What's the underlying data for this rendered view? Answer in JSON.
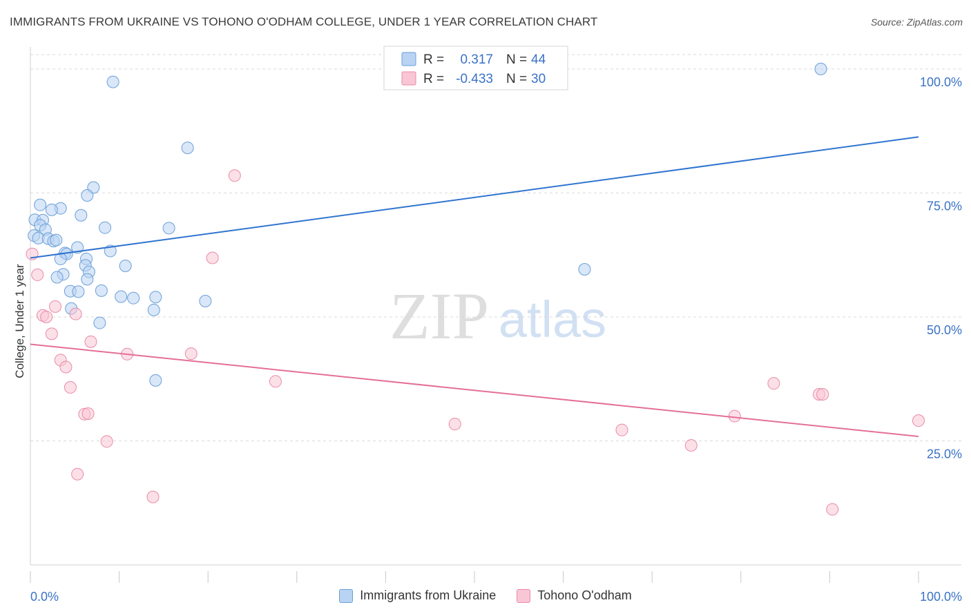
{
  "title": "IMMIGRANTS FROM UKRAINE VS TOHONO O'ODHAM COLLEGE, UNDER 1 YEAR CORRELATION CHART",
  "source": "Source: ZipAtlas.com",
  "watermark": {
    "zip": "ZIP",
    "atlas": "atlas"
  },
  "colors": {
    "blue_fill": "#b9d3f3",
    "blue_stroke": "#6a9fd8",
    "blue_line": "#2f74d0",
    "pink_fill": "#f9c6d5",
    "pink_stroke": "#e88aa6",
    "pink_line": "#e46f97",
    "value_text": "#3a72c6",
    "grid": "#d9d9d9"
  },
  "legend": {
    "rows": [
      {
        "r_label": "R =",
        "r_value": "0.317",
        "n_label": "N =",
        "n_value": "44",
        "series": "blue"
      },
      {
        "r_label": "R =",
        "r_value": "-0.433",
        "n_label": "N =",
        "n_value": "30",
        "series": "pink"
      }
    ]
  },
  "bottom_legend": [
    {
      "label": "Immigrants from Ukraine",
      "series": "blue"
    },
    {
      "label": "Tohono O'odham",
      "series": "pink"
    }
  ],
  "chart_data": {
    "type": "scatter",
    "xlabel": "",
    "ylabel": "College, Under 1 year",
    "xlim": [
      0,
      100
    ],
    "ylim": [
      0,
      105
    ],
    "x_tick_labels": [
      {
        "value": 0,
        "label": "0.0%"
      },
      {
        "value": 100,
        "label": "100.0%"
      }
    ],
    "y_tick_labels": [
      {
        "value": 25,
        "label": "25.0%"
      },
      {
        "value": 50,
        "label": "50.0%"
      },
      {
        "value": 75,
        "label": "75.0%"
      },
      {
        "value": 100,
        "label": "100.0%"
      }
    ],
    "x_minor_ticks": [
      0,
      10,
      20,
      30,
      40,
      50,
      60,
      70,
      80,
      90,
      100
    ],
    "grid": true,
    "series": [
      {
        "name": "Immigrants from Ukraine",
        "color": "blue",
        "points": [
          [
            9.3,
            97.4
          ],
          [
            17.7,
            84.1
          ],
          [
            89,
            100
          ],
          [
            7.1,
            76.1
          ],
          [
            6.4,
            74.5
          ],
          [
            1.1,
            72.6
          ],
          [
            3.4,
            71.9
          ],
          [
            2.4,
            71.6
          ],
          [
            5.7,
            70.5
          ],
          [
            0.5,
            69.6
          ],
          [
            1.4,
            69.5
          ],
          [
            1.1,
            68.5
          ],
          [
            8.4,
            68.0
          ],
          [
            15.6,
            67.9
          ],
          [
            1.7,
            67.6
          ],
          [
            0.4,
            66.4
          ],
          [
            0.9,
            65.9
          ],
          [
            2.0,
            65.8
          ],
          [
            2.6,
            65.3
          ],
          [
            2.9,
            65.5
          ],
          [
            5.3,
            64.0
          ],
          [
            9.0,
            63.3
          ],
          [
            3.9,
            62.9
          ],
          [
            4.1,
            62.7
          ],
          [
            3.4,
            61.7
          ],
          [
            6.3,
            61.7
          ],
          [
            6.2,
            60.4
          ],
          [
            10.7,
            60.3
          ],
          [
            6.6,
            59.1
          ],
          [
            3.7,
            58.6
          ],
          [
            3.0,
            58.0
          ],
          [
            6.4,
            57.6
          ],
          [
            62.4,
            59.6
          ],
          [
            8.0,
            55.3
          ],
          [
            4.5,
            55.2
          ],
          [
            5.4,
            55.1
          ],
          [
            10.2,
            54.1
          ],
          [
            11.6,
            53.8
          ],
          [
            14.1,
            54.0
          ],
          [
            19.7,
            53.2
          ],
          [
            4.6,
            51.7
          ],
          [
            13.9,
            51.4
          ],
          [
            7.8,
            48.8
          ],
          [
            14.1,
            37.2
          ]
        ]
      },
      {
        "name": "Tohono O'odham",
        "color": "pink",
        "points": [
          [
            23,
            78.5
          ],
          [
            20.5,
            61.9
          ],
          [
            0.2,
            62.7
          ],
          [
            0.8,
            58.5
          ],
          [
            2.8,
            52.1
          ],
          [
            1.4,
            50.3
          ],
          [
            1.8,
            50.0
          ],
          [
            5.1,
            50.6
          ],
          [
            2.4,
            46.6
          ],
          [
            6.8,
            45.0
          ],
          [
            10.9,
            42.5
          ],
          [
            18.1,
            42.6
          ],
          [
            3.4,
            41.3
          ],
          [
            4.0,
            39.9
          ],
          [
            27.6,
            37.0
          ],
          [
            83.7,
            36.6
          ],
          [
            4.5,
            35.8
          ],
          [
            88.8,
            34.4
          ],
          [
            89.2,
            34.4
          ],
          [
            6.1,
            30.4
          ],
          [
            6.5,
            30.5
          ],
          [
            79.3,
            30.0
          ],
          [
            100,
            29.1
          ],
          [
            47.8,
            28.4
          ],
          [
            66.6,
            27.2
          ],
          [
            8.6,
            24.9
          ],
          [
            74.4,
            24.1
          ],
          [
            5.3,
            18.3
          ],
          [
            13.8,
            13.7
          ],
          [
            90.3,
            11.2
          ]
        ]
      }
    ],
    "trend_lines": [
      {
        "series": "Immigrants from Ukraine",
        "x": [
          0,
          100
        ],
        "y": [
          61.9,
          86.3
        ]
      },
      {
        "series": "Tohono O'odham",
        "x": [
          0,
          100
        ],
        "y": [
          44.5,
          25.9
        ]
      }
    ]
  }
}
